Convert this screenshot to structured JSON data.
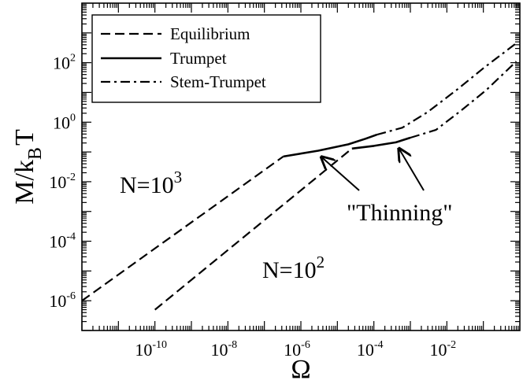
{
  "chart_data": {
    "type": "line",
    "xscale": "log",
    "yscale": "log",
    "xlim": [
      1e-12,
      1.0
    ],
    "ylim": [
      1e-07,
      10000.0
    ],
    "xlabel": "Ω",
    "ylabel": "M/k",
    "ylabel_sub": "B",
    "ylabel_tail": "T",
    "x_ticks": [
      {
        "base": "10",
        "exp": "-10",
        "value": 1e-10
      },
      {
        "base": "10",
        "exp": "-8",
        "value": 1e-08
      },
      {
        "base": "10",
        "exp": "-6",
        "value": 1e-06
      },
      {
        "base": "10",
        "exp": "-4",
        "value": 0.0001
      },
      {
        "base": "10",
        "exp": "-2",
        "value": 0.01
      }
    ],
    "y_ticks": [
      {
        "base": "10",
        "exp": "-6",
        "value": 1e-06
      },
      {
        "base": "10",
        "exp": "-4",
        "value": 0.0001
      },
      {
        "base": "10",
        "exp": "-2",
        "value": 0.01
      },
      {
        "base": "10",
        "exp": "0",
        "value": 1
      },
      {
        "base": "10",
        "exp": "2",
        "value": 100
      }
    ],
    "legend_position": "top-left",
    "legend": [
      {
        "label": "Equilibrium",
        "style": "dashed"
      },
      {
        "label": "Trumpet",
        "style": "solid"
      },
      {
        "label": "Stem-Trumpet",
        "style": "dashdot"
      }
    ],
    "series": [
      {
        "name": "Equilibrium",
        "group": "N=10^3",
        "style": "dashed",
        "x": [
          1e-12,
          3.3e-07
        ],
        "y": [
          1e-06,
          0.07
        ]
      },
      {
        "name": "Equilibrium",
        "group": "N=10^2",
        "style": "dashed",
        "x": [
          1e-10,
          2.5e-05
        ],
        "y": [
          5e-07,
          0.13
        ]
      },
      {
        "name": "Trumpet",
        "group": "N=10^3",
        "style": "solid",
        "x": [
          3.3e-07,
          3e-06,
          2e-05,
          6e-05,
          0.00012
        ],
        "y": [
          0.07,
          0.11,
          0.18,
          0.28,
          0.38
        ]
      },
      {
        "name": "Trumpet",
        "group": "N=10^2",
        "style": "solid",
        "x": [
          2.5e-05,
          0.0001,
          0.0004,
          0.001
        ],
        "y": [
          0.13,
          0.16,
          0.21,
          0.3
        ]
      },
      {
        "name": "Stem-Trumpet",
        "group": "N=10^3",
        "style": "dashdot",
        "x": [
          0.00012,
          0.0006,
          0.003,
          0.02,
          0.1,
          0.8
        ],
        "y": [
          0.38,
          0.65,
          2.2,
          13,
          65,
          450
        ]
      },
      {
        "name": "Stem-Trumpet",
        "group": "N=10^2",
        "style": "dashdot",
        "x": [
          0.001,
          0.005,
          0.025,
          0.12,
          0.8
        ],
        "y": [
          0.3,
          0.55,
          2.5,
          12,
          110
        ]
      }
    ],
    "annotations": [
      {
        "id": "n3",
        "base": "N=10",
        "exp": "3"
      },
      {
        "id": "n2",
        "base": "N=10",
        "exp": "2"
      },
      {
        "id": "thinning",
        "text": "\"Thinning\""
      }
    ],
    "arrows_point_to": [
      {
        "x": 3e-06,
        "y": 0.11
      },
      {
        "x": 0.0004,
        "y": 0.21
      }
    ]
  }
}
